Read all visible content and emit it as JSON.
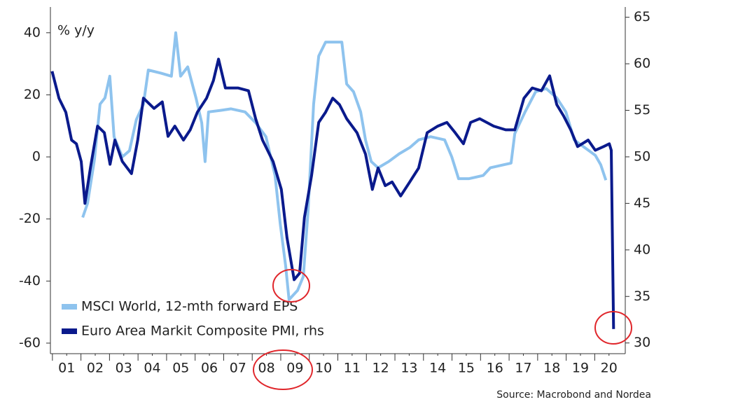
{
  "chart_data": {
    "type": "line",
    "axis_label": "% y/y",
    "source": "Source: Macrobond and Nordea",
    "xlim": [
      2000.93,
      2021.07
    ],
    "xticks": [
      {
        "value": 2001.5,
        "label": "01"
      },
      {
        "value": 2002.5,
        "label": "02"
      },
      {
        "value": 2003.5,
        "label": "03"
      },
      {
        "value": 2004.5,
        "label": "04"
      },
      {
        "value": 2005.5,
        "label": "05"
      },
      {
        "value": 2006.5,
        "label": "06"
      },
      {
        "value": 2007.5,
        "label": "07"
      },
      {
        "value": 2008.5,
        "label": "08"
      },
      {
        "value": 2009.5,
        "label": "09"
      },
      {
        "value": 2010.5,
        "label": "10"
      },
      {
        "value": 2011.5,
        "label": "11"
      },
      {
        "value": 2012.5,
        "label": "12"
      },
      {
        "value": 2013.5,
        "label": "13"
      },
      {
        "value": 2014.5,
        "label": "14"
      },
      {
        "value": 2015.5,
        "label": "15"
      },
      {
        "value": 2016.5,
        "label": "16"
      },
      {
        "value": 2017.5,
        "label": "17"
      },
      {
        "value": 2018.5,
        "label": "18"
      },
      {
        "value": 2019.5,
        "label": "19"
      },
      {
        "value": 2020.5,
        "label": "20"
      }
    ],
    "ylim": [
      -63.4,
      48.3
    ],
    "yticks": [
      -60,
      -40,
      -20,
      0,
      20,
      40
    ],
    "y2lim": [
      28.85,
      66.1
    ],
    "y2ticks": [
      30,
      35,
      40,
      45,
      50,
      55,
      60,
      65
    ],
    "legend": "lower left",
    "series": [
      {
        "name": "MSCI World, 12-mth forward EPS",
        "color": "#8ec3ee",
        "x": [
          2002.06,
          2002.23,
          2002.47,
          2002.67,
          2002.84,
          2003.01,
          2003.16,
          2003.45,
          2003.7,
          2003.94,
          2004.19,
          2004.36,
          2004.8,
          2005.17,
          2005.32,
          2005.49,
          2005.74,
          2006.03,
          2006.23,
          2006.35,
          2006.47,
          2006.89,
          2007.26,
          2007.75,
          2008.12,
          2008.48,
          2008.8,
          2008.98,
          2009.17,
          2009.29,
          2009.59,
          2009.79,
          2009.96,
          2010.15,
          2010.33,
          2010.57,
          2010.94,
          2011.14,
          2011.31,
          2011.55,
          2011.8,
          2011.97,
          2012.17,
          2012.41,
          2012.78,
          2013.15,
          2013.52,
          2013.83,
          2014.25,
          2014.74,
          2014.99,
          2015.23,
          2015.6,
          2016.09,
          2016.34,
          2016.83,
          2017.07,
          2017.2,
          2017.56,
          2017.93,
          2018.3,
          2018.67,
          2018.99,
          2019.28,
          2019.65,
          2020.02,
          2020.21,
          2020.39
        ],
        "values": [
          -19.5,
          -15,
          -1,
          17,
          19,
          26,
          6.5,
          0,
          2,
          12,
          17,
          28,
          27,
          26,
          40,
          26,
          29,
          19,
          11,
          -1.5,
          14.5,
          15,
          15.5,
          14.5,
          11,
          6.5,
          -6,
          -21.5,
          -35,
          -46,
          -43,
          -38.5,
          -17,
          17,
          32.5,
          37,
          37,
          37,
          23.5,
          21,
          14.5,
          5.5,
          -1.5,
          -3.5,
          -1.5,
          1,
          3,
          5.5,
          6.5,
          5.5,
          0,
          -7,
          -7,
          -6,
          -3.5,
          -2.5,
          -2,
          7.5,
          14.5,
          21,
          22,
          19,
          14.5,
          5.5,
          3,
          0.5,
          -2.5,
          -7.5
        ]
      },
      {
        "name": "Euro Area Markit Composite PMI, rhs",
        "color": "#0a1a8c",
        "axis": "y2",
        "x": [
          2000.99,
          2001.23,
          2001.47,
          2001.67,
          2001.84,
          2002.01,
          2002.14,
          2002.33,
          2002.58,
          2002.82,
          2003.02,
          2003.19,
          2003.45,
          2003.77,
          2003.99,
          2004.19,
          2004.56,
          2004.85,
          2005.05,
          2005.29,
          2005.59,
          2005.83,
          2006.08,
          2006.4,
          2006.64,
          2006.82,
          2007.06,
          2007.5,
          2007.87,
          2008.12,
          2008.36,
          2008.73,
          2009.02,
          2009.22,
          2009.47,
          2009.66,
          2009.83,
          2010.08,
          2010.33,
          2010.57,
          2010.82,
          2011.06,
          2011.31,
          2011.67,
          2011.97,
          2012.21,
          2012.41,
          2012.66,
          2012.9,
          2013.2,
          2013.52,
          2013.83,
          2014.13,
          2014.5,
          2014.82,
          2015.11,
          2015.4,
          2015.65,
          2015.97,
          2016.46,
          2016.88,
          2017.2,
          2017.52,
          2017.81,
          2018.13,
          2018.42,
          2018.67,
          2018.91,
          2019.16,
          2019.4,
          2019.77,
          2020.02,
          2020.31,
          2020.51,
          2020.58,
          2020.66
        ],
        "values": [
          59.2,
          56.3,
          54.8,
          51.8,
          51.4,
          49.5,
          45.0,
          48.8,
          53.3,
          52.6,
          49.2,
          51.8,
          49.5,
          48.2,
          51.8,
          56.3,
          55.2,
          55.9,
          52.2,
          53.3,
          51.8,
          52.9,
          54.8,
          56.3,
          58.2,
          60.5,
          57.4,
          57.4,
          57.1,
          54.1,
          51.8,
          49.5,
          46.5,
          41.3,
          36.8,
          37.5,
          43.5,
          48.0,
          53.7,
          54.8,
          56.3,
          55.6,
          54.1,
          52.6,
          50.3,
          46.5,
          48.8,
          46.9,
          47.3,
          45.8,
          47.3,
          48.8,
          52.6,
          53.3,
          53.7,
          52.6,
          51.4,
          53.7,
          54.1,
          53.3,
          52.9,
          52.9,
          56.3,
          57.4,
          57.1,
          58.7,
          55.6,
          54.4,
          52.9,
          51.1,
          51.8,
          50.7,
          51.1,
          51.4,
          50.7,
          31.5
        ]
      }
    ]
  }
}
